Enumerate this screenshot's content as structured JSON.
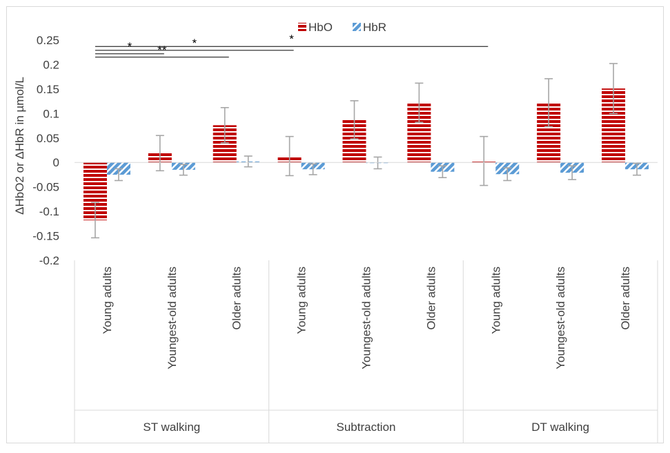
{
  "chart_data": {
    "type": "bar",
    "title": "",
    "ylabel": "ΔHbO2 or ΔHbR in µmol/L",
    "xlabel": "",
    "ylim": [
      -0.2,
      0.25
    ],
    "yticks": [
      0.25,
      0.2,
      0.15,
      0.1,
      0.05,
      0,
      -0.05,
      -0.1,
      -0.15,
      -0.2
    ],
    "ytick_labels": [
      "0.25",
      "0.2",
      "0.15",
      "0.1",
      "0.05",
      "0",
      "-0.05",
      "-0.1",
      "-0.15",
      "-0.2"
    ],
    "legend_position": "top-center",
    "groups": [
      "ST walking",
      "Subtraction",
      "DT walking"
    ],
    "categories": [
      "Young adults",
      "Youngest-old adults",
      "Older adults",
      "Young adults",
      "Youngest-old adults",
      "Older adults",
      "Young adults",
      "Youngest-old adults",
      "Older adults"
    ],
    "series": [
      {
        "name": "HbO",
        "color": "#c00000",
        "pattern": "horizontal-stripes",
        "values": [
          -0.118,
          0.019,
          0.076,
          0.013,
          0.087,
          0.122,
          0.003,
          0.122,
          0.151
        ],
        "errors": [
          0.036,
          0.036,
          0.036,
          0.04,
          0.039,
          0.04,
          0.05,
          0.049,
          0.051
        ]
      },
      {
        "name": "HbR",
        "color": "#5b9bd5",
        "pattern": "diagonal-stripes",
        "values": [
          -0.025,
          -0.015,
          0.002,
          -0.014,
          -0.001,
          -0.019,
          -0.024,
          -0.021,
          -0.014
        ],
        "errors": [
          0.012,
          0.011,
          0.011,
          0.011,
          0.012,
          0.012,
          0.013,
          0.014,
          0.012
        ]
      }
    ],
    "significance": [
      {
        "label": "*",
        "from_category": 0,
        "to_category": 1,
        "y": 0.222
      },
      {
        "label": "**",
        "from_category": 0,
        "to_category": 2,
        "y": 0.215
      },
      {
        "label": "*",
        "from_category": 0,
        "to_category": 3,
        "y": 0.229
      },
      {
        "label": "*",
        "from_category": 0,
        "to_category": 6,
        "y": 0.237
      }
    ]
  }
}
